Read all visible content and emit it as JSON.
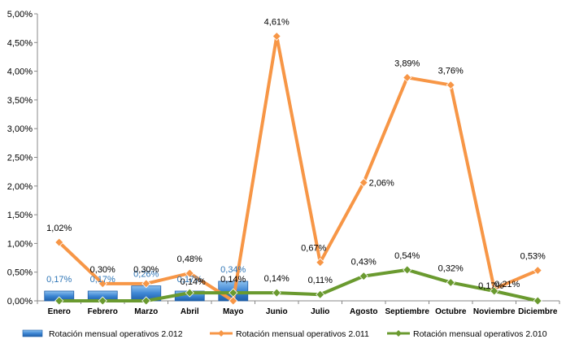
{
  "chart_data": {
    "type": "bar+line",
    "title": "",
    "xlabel": "",
    "ylabel": "",
    "ylim": [
      0,
      5.0
    ],
    "ytick_step": 0.5,
    "ytick_labels": [
      "0,00%",
      "0,50%",
      "1,00%",
      "1,50%",
      "2,00%",
      "2,50%",
      "3,00%",
      "3,50%",
      "4,00%",
      "4,50%",
      "5,00%"
    ],
    "categories": [
      "Enero",
      "Febrero",
      "Marzo",
      "Abril",
      "Mayo",
      "Junio",
      "Julio",
      "Agosto",
      "Septiembre",
      "Octubre",
      "Noviembre",
      "Diciembre"
    ],
    "legend_position": "bottom",
    "grid": false,
    "series": [
      {
        "name": "Rotación mensual operativos 2.012",
        "kind": "bar",
        "color": "#4a90d9",
        "values": [
          0.17,
          0.17,
          0.26,
          0.17,
          0.34,
          null,
          null,
          null,
          null,
          null,
          null,
          null
        ],
        "labels": [
          "0,17%",
          "0,17%",
          "0,26%",
          "0,17%",
          "0,34%",
          "",
          "",
          "",
          "",
          "",
          "",
          ""
        ]
      },
      {
        "name": "Rotación mensual operativos 2.011",
        "kind": "line",
        "color": "#f79646",
        "values": [
          1.02,
          0.3,
          0.3,
          0.48,
          0.0,
          4.61,
          0.67,
          2.06,
          3.89,
          3.76,
          0.21,
          0.53
        ],
        "labels": [
          "1,02%",
          "0,30%",
          "0,30%",
          "0,48%",
          "",
          "4,61%",
          "0,67%",
          "2,06%",
          "3,89%",
          "3,76%",
          "0,21%",
          "0,53%"
        ]
      },
      {
        "name": "Rotación mensual operativos 2.010",
        "kind": "line",
        "color": "#6a9a2f",
        "values": [
          0.0,
          0.0,
          0.0,
          0.14,
          0.14,
          0.14,
          0.11,
          0.43,
          0.54,
          0.32,
          0.17,
          0.0
        ],
        "labels": [
          "",
          "",
          "",
          "0,14%",
          "0,14%",
          "0,14%",
          "0,11%",
          "0,43%",
          "0,54%",
          "0,32%",
          "0,17%",
          ""
        ]
      }
    ]
  }
}
